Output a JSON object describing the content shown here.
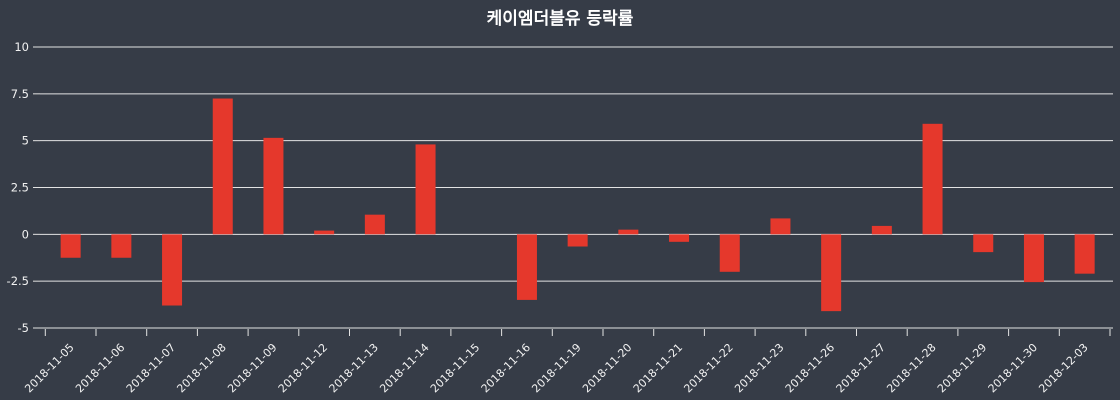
{
  "title": "케이엠더블유 등락률",
  "chart_data": {
    "type": "bar",
    "title": "케이엠더블유 등락률",
    "categories": [
      "2018-11-05",
      "2018-11-06",
      "2018-11-07",
      "2018-11-08",
      "2018-11-09",
      "2018-11-12",
      "2018-11-13",
      "2018-11-14",
      "2018-11-15",
      "2018-11-16",
      "2018-11-19",
      "2018-11-20",
      "2018-11-21",
      "2018-11-22",
      "2018-11-23",
      "2018-11-26",
      "2018-11-27",
      "2018-11-28",
      "2018-11-29",
      "2018-11-30",
      "2018-12-03"
    ],
    "values": [
      -1.25,
      -1.25,
      -3.8,
      7.25,
      5.15,
      0.2,
      1.05,
      4.8,
      0,
      -3.5,
      -0.65,
      0.25,
      -0.4,
      -2.0,
      0.85,
      -4.1,
      0.45,
      5.9,
      -0.95,
      -2.55,
      -2.1
    ],
    "xlabel": "",
    "ylabel": "",
    "ylim": [
      -5,
      10
    ],
    "yticks": [
      10,
      7.5,
      5,
      2.5,
      0,
      -2.5,
      -5
    ],
    "ytick_labels": [
      "10",
      "7.5",
      "5",
      "2.5",
      "0",
      "-2.5",
      "-5"
    ],
    "grid": "on",
    "legend": "none",
    "colors": {
      "background": "#363c47",
      "bar": "#e5382c",
      "grid": "#e3e3e3",
      "text": "#f2f2f2"
    }
  }
}
